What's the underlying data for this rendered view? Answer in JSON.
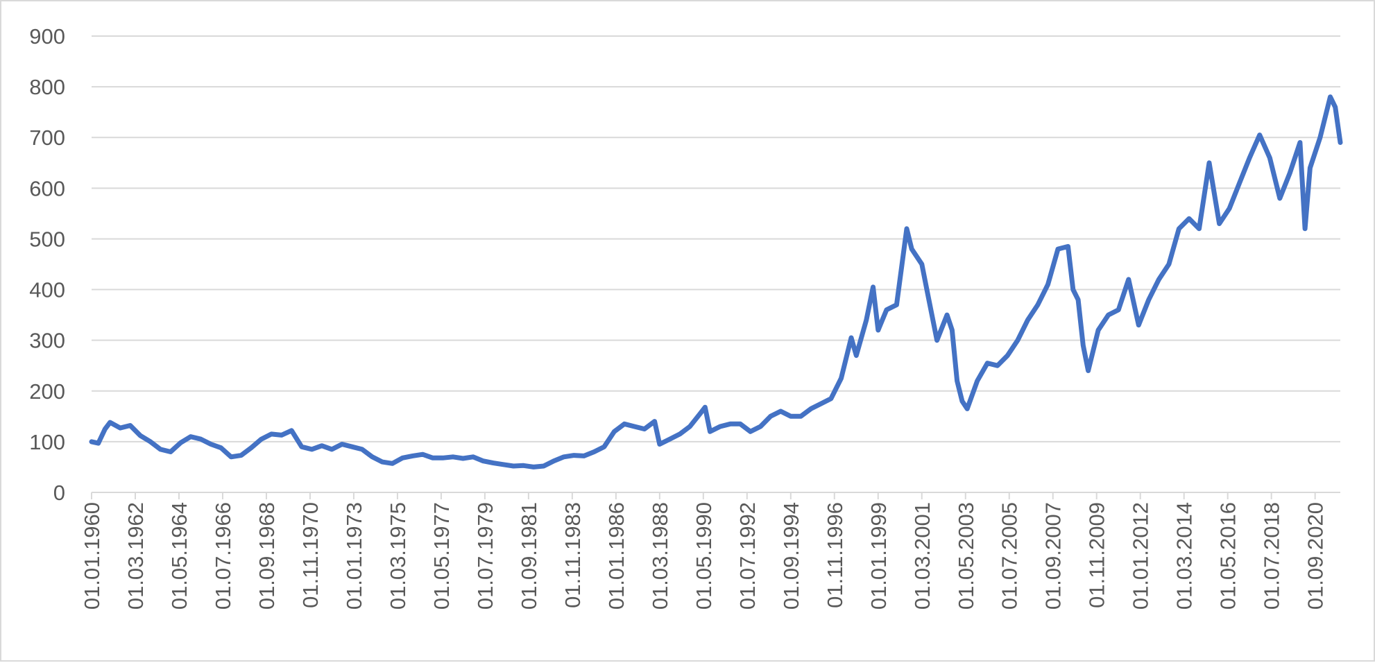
{
  "chart_data": {
    "type": "line",
    "title": "",
    "xlabel": "",
    "ylabel": "",
    "ylim": [
      0,
      900
    ],
    "y_ticks": [
      0,
      100,
      200,
      300,
      400,
      500,
      600,
      700,
      800,
      900
    ],
    "x_tick_labels": [
      "01.01.1960",
      "01.03.1962",
      "01.05.1964",
      "01.07.1966",
      "01.09.1968",
      "01.11.1970",
      "01.01.1973",
      "01.03.1975",
      "01.05.1977",
      "01.07.1979",
      "01.09.1981",
      "01.11.1983",
      "01.01.1986",
      "01.03.1988",
      "01.05.1990",
      "01.07.1992",
      "01.09.1994",
      "01.11.1996",
      "01.01.1999",
      "01.03.2001",
      "01.05.2003",
      "01.07.2005",
      "01.09.2007",
      "01.11.2009",
      "01.01.2012",
      "01.03.2014",
      "01.05.2016",
      "01.07.2018",
      "01.09.2020"
    ],
    "x_range": [
      "01.01.1960",
      "01.12.2021"
    ],
    "grid": true,
    "legend": "none",
    "line_color": "#4472c4",
    "series": [
      {
        "points": [
          [
            "01.01.1960",
            100
          ],
          [
            "01.05.1960",
            97
          ],
          [
            "01.09.1960",
            125
          ],
          [
            "01.12.1960",
            138
          ],
          [
            "01.06.1961",
            127
          ],
          [
            "01.12.1961",
            132
          ],
          [
            "01.06.1962",
            112
          ],
          [
            "01.12.1962",
            100
          ],
          [
            "01.06.1963",
            85
          ],
          [
            "01.12.1963",
            80
          ],
          [
            "01.06.1964",
            98
          ],
          [
            "01.12.1964",
            110
          ],
          [
            "01.06.1965",
            105
          ],
          [
            "01.12.1965",
            95
          ],
          [
            "01.06.1966",
            88
          ],
          [
            "01.12.1966",
            70
          ],
          [
            "01.06.1967",
            73
          ],
          [
            "01.12.1967",
            88
          ],
          [
            "01.06.1968",
            105
          ],
          [
            "01.12.1968",
            115
          ],
          [
            "01.06.1969",
            113
          ],
          [
            "01.12.1969",
            122
          ],
          [
            "01.06.1970",
            90
          ],
          [
            "01.12.1970",
            85
          ],
          [
            "01.06.1971",
            92
          ],
          [
            "01.12.1971",
            85
          ],
          [
            "01.06.1972",
            95
          ],
          [
            "01.12.1972",
            90
          ],
          [
            "01.06.1973",
            85
          ],
          [
            "01.12.1973",
            70
          ],
          [
            "01.06.1974",
            60
          ],
          [
            "01.12.1974",
            57
          ],
          [
            "01.06.1975",
            68
          ],
          [
            "01.12.1975",
            72
          ],
          [
            "01.06.1976",
            75
          ],
          [
            "01.12.1976",
            68
          ],
          [
            "01.06.1977",
            68
          ],
          [
            "01.12.1977",
            70
          ],
          [
            "01.06.1978",
            67
          ],
          [
            "01.12.1978",
            70
          ],
          [
            "01.06.1979",
            62
          ],
          [
            "01.12.1979",
            58
          ],
          [
            "01.06.1980",
            55
          ],
          [
            "01.12.1980",
            52
          ],
          [
            "01.06.1981",
            53
          ],
          [
            "01.12.1981",
            50
          ],
          [
            "01.06.1982",
            52
          ],
          [
            "01.12.1982",
            62
          ],
          [
            "01.06.1983",
            70
          ],
          [
            "01.12.1983",
            73
          ],
          [
            "01.06.1984",
            72
          ],
          [
            "01.12.1984",
            80
          ],
          [
            "01.06.1985",
            90
          ],
          [
            "01.12.1985",
            120
          ],
          [
            "01.06.1986",
            135
          ],
          [
            "01.12.1986",
            130
          ],
          [
            "01.06.1987",
            125
          ],
          [
            "01.12.1987",
            140
          ],
          [
            "01.03.1988",
            95
          ],
          [
            "01.09.1988",
            105
          ],
          [
            "01.03.1989",
            115
          ],
          [
            "01.09.1989",
            130
          ],
          [
            "01.03.1990",
            155
          ],
          [
            "01.06.1990",
            168
          ],
          [
            "01.09.1990",
            120
          ],
          [
            "01.03.1991",
            130
          ],
          [
            "01.09.1991",
            135
          ],
          [
            "01.03.1992",
            135
          ],
          [
            "01.09.1992",
            120
          ],
          [
            "01.03.1993",
            130
          ],
          [
            "01.09.1993",
            150
          ],
          [
            "01.03.1994",
            160
          ],
          [
            "01.09.1994",
            150
          ],
          [
            "01.03.1995",
            150
          ],
          [
            "01.09.1995",
            165
          ],
          [
            "01.03.1996",
            175
          ],
          [
            "01.09.1996",
            185
          ],
          [
            "01.03.1997",
            225
          ],
          [
            "01.09.1997",
            305
          ],
          [
            "01.12.1997",
            270
          ],
          [
            "01.06.1998",
            340
          ],
          [
            "01.10.1998",
            405
          ],
          [
            "01.01.1999",
            320
          ],
          [
            "01.06.1999",
            360
          ],
          [
            "01.12.1999",
            370
          ],
          [
            "01.06.2000",
            520
          ],
          [
            "01.09.2000",
            480
          ],
          [
            "01.03.2001",
            450
          ],
          [
            "01.06.2001",
            400
          ],
          [
            "01.12.2001",
            300
          ],
          [
            "01.06.2002",
            350
          ],
          [
            "01.09.2002",
            320
          ],
          [
            "01.12.2002",
            220
          ],
          [
            "01.03.2003",
            180
          ],
          [
            "01.06.2003",
            165
          ],
          [
            "01.12.2003",
            220
          ],
          [
            "01.06.2004",
            255
          ],
          [
            "01.12.2004",
            250
          ],
          [
            "01.06.2005",
            270
          ],
          [
            "01.12.2005",
            300
          ],
          [
            "01.06.2006",
            340
          ],
          [
            "01.12.2006",
            370
          ],
          [
            "01.06.2007",
            410
          ],
          [
            "01.12.2007",
            480
          ],
          [
            "01.06.2008",
            485
          ],
          [
            "01.09.2008",
            400
          ],
          [
            "01.12.2008",
            380
          ],
          [
            "01.03.2009",
            290
          ],
          [
            "01.06.2009",
            240
          ],
          [
            "01.12.2009",
            320
          ],
          [
            "01.06.2010",
            350
          ],
          [
            "01.12.2010",
            360
          ],
          [
            "01.06.2011",
            420
          ],
          [
            "01.12.2011",
            330
          ],
          [
            "01.06.2012",
            380
          ],
          [
            "01.12.2012",
            420
          ],
          [
            "01.06.2013",
            450
          ],
          [
            "01.12.2013",
            520
          ],
          [
            "01.06.2014",
            540
          ],
          [
            "01.12.2014",
            520
          ],
          [
            "01.06.2015",
            650
          ],
          [
            "01.12.2015",
            530
          ],
          [
            "01.06.2016",
            560
          ],
          [
            "01.12.2016",
            610
          ],
          [
            "01.06.2017",
            660
          ],
          [
            "01.12.2017",
            705
          ],
          [
            "01.06.2018",
            660
          ],
          [
            "01.12.2018",
            580
          ],
          [
            "01.06.2019",
            630
          ],
          [
            "01.12.2019",
            690
          ],
          [
            "01.03.2020",
            520
          ],
          [
            "01.06.2020",
            640
          ],
          [
            "01.12.2020",
            700
          ],
          [
            "01.06.2021",
            780
          ],
          [
            "01.09.2021",
            760
          ],
          [
            "01.12.2021",
            690
          ]
        ]
      }
    ]
  }
}
